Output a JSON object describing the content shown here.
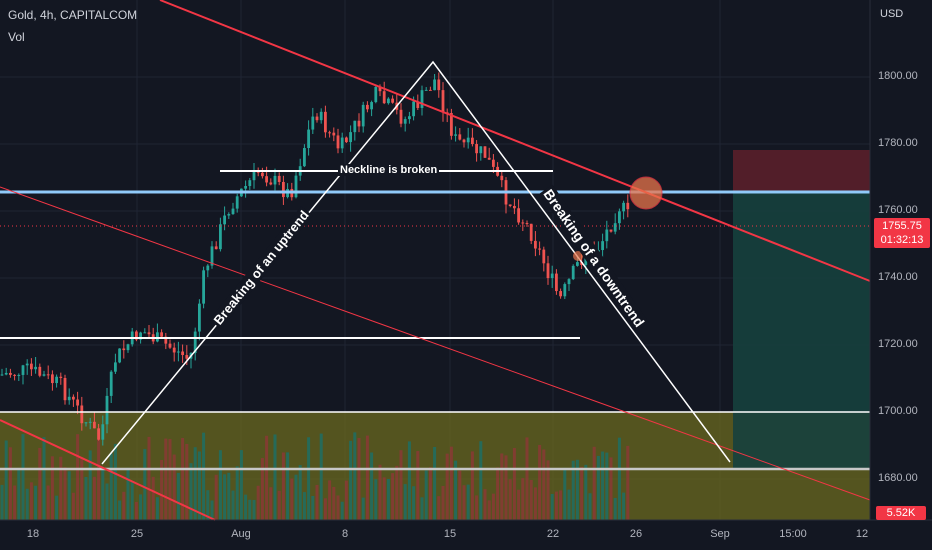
{
  "header": {
    "ticker": "Gold, 4h, CAPITALCOM",
    "volume_label": "Vol",
    "currency": "USD"
  },
  "price_axis": [
    "1800.00",
    "1780.00",
    "1760.00",
    "1740.00",
    "1720.00",
    "1700.00",
    "1680.00"
  ],
  "time_axis": [
    "18",
    "25",
    "Aug",
    "8",
    "15",
    "22",
    "26",
    "Sep",
    "15:00",
    "12"
  ],
  "last_price": {
    "value": "1755.75",
    "countdown": "01:32:13"
  },
  "volume_badge": "5.52K",
  "annotations": {
    "uptrend": "Breaking of an uptrend",
    "neckline": "Neckline is broken",
    "downtrend": "Breaking of a downtrend"
  },
  "colors": {
    "background": "#131722",
    "bull": "#26a69a",
    "bear": "#ef5350",
    "trendline": "#f23645",
    "level": "#90caf9",
    "zone": "#8b8b2a"
  }
}
